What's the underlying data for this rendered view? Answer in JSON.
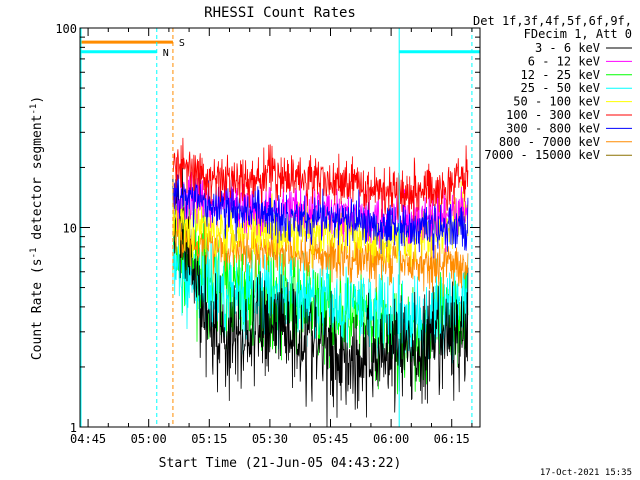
{
  "chart_data": {
    "type": "line",
    "title": "RHESSI Count Rates",
    "xlabel": "Start Time (21-Jun-05 04:43:22)",
    "ylabel": "Count Rate (s",
    "ylabel_sup": "-1",
    "ylabel_rest": " detector segment",
    "ylabel_end": ")",
    "yscale": "log",
    "ylim": [
      1,
      100
    ],
    "xlim": [
      "04:43",
      "06:22"
    ],
    "x_ticks": [
      "04:45",
      "05:00",
      "05:15",
      "05:30",
      "05:45",
      "06:00",
      "06:15"
    ],
    "y_ticks": [
      "1",
      "10",
      "100"
    ],
    "legend_header": [
      "Det 1f,3f,4f,5f,6f,9f,",
      "FDecim 1, Att 0"
    ],
    "legend_position": "right",
    "timestamp": "17-Oct-2021 15:35",
    "series": [
      {
        "name": "3 - 6 keV",
        "color": "#000000",
        "times": [
          "05:06",
          "05:08",
          "05:10",
          "05:13",
          "05:16",
          "05:20",
          "05:24",
          "05:28",
          "05:32",
          "05:36",
          "05:40",
          "05:44",
          "05:48",
          "05:52",
          "05:56",
          "06:00",
          "06:04",
          "06:08",
          "06:12",
          "06:16",
          "06:19"
        ],
        "values": [
          12,
          9,
          7,
          4.2,
          3.2,
          2.7,
          2.8,
          3.2,
          3.5,
          3.0,
          2.7,
          2.4,
          2.3,
          2.2,
          2.3,
          2.5,
          2.4,
          2.3,
          2.6,
          2.9,
          3.0
        ]
      },
      {
        "name": "6 - 12 keV",
        "color": "#ff00ff",
        "times": [
          "05:06",
          "05:10",
          "05:15",
          "05:20",
          "05:25",
          "05:30",
          "05:35",
          "05:40",
          "05:45",
          "05:50",
          "05:55",
          "06:00",
          "06:05",
          "06:10",
          "06:15",
          "06:19"
        ],
        "values": [
          14,
          14,
          13.5,
          13,
          12.5,
          12.5,
          12.5,
          12,
          12,
          11.5,
          11,
          11,
          11,
          11,
          11.5,
          12
        ]
      },
      {
        "name": "12 - 25 keV",
        "color": "#00ff00",
        "times": [
          "05:06",
          "05:10",
          "05:15",
          "05:20",
          "05:25",
          "05:30",
          "05:35",
          "05:40",
          "05:45",
          "05:50",
          "05:55",
          "06:00",
          "06:05",
          "06:10",
          "06:15",
          "06:19"
        ],
        "values": [
          7.5,
          6.5,
          5.5,
          5.0,
          4.6,
          4.4,
          4.2,
          4.0,
          3.8,
          3.5,
          3.2,
          2.9,
          2.8,
          3.0,
          3.5,
          4.2
        ]
      },
      {
        "name": "25 - 50 keV",
        "color": "#00ffff",
        "times": [
          "05:06",
          "05:10",
          "05:15",
          "05:20",
          "05:25",
          "05:30",
          "05:35",
          "05:40",
          "05:45",
          "05:50",
          "05:55",
          "06:00",
          "06:05",
          "06:10",
          "06:15",
          "06:19"
        ],
        "values": [
          6.3,
          5.5,
          5.0,
          4.8,
          4.6,
          4.5,
          4.5,
          4.4,
          4.2,
          4.0,
          3.8,
          3.5,
          3.4,
          3.5,
          3.9,
          4.4
        ]
      },
      {
        "name": "50 - 100 keV",
        "color": "#ffff00",
        "times": [
          "05:06",
          "05:10",
          "05:15",
          "05:20",
          "05:25",
          "05:30",
          "05:35",
          "05:40",
          "05:45",
          "05:50",
          "05:55",
          "06:00",
          "06:05",
          "06:10",
          "06:15",
          "06:19"
        ],
        "values": [
          11,
          10.5,
          10,
          10,
          10,
          10,
          9.8,
          9.6,
          9.4,
          9.2,
          9.0,
          9.0,
          9.2,
          9.6,
          10.5,
          12
        ]
      },
      {
        "name": "100 - 300 keV",
        "color": "#ff0000",
        "times": [
          "05:06",
          "05:10",
          "05:15",
          "05:20",
          "05:25",
          "05:30",
          "05:35",
          "05:40",
          "05:45",
          "05:50",
          "05:55",
          "06:00",
          "06:05",
          "06:10",
          "06:15",
          "06:19"
        ],
        "values": [
          22,
          19,
          17.5,
          17,
          17.5,
          18.5,
          18,
          17.5,
          17,
          16.5,
          16,
          15.5,
          15.5,
          15.5,
          16.5,
          18.5
        ]
      },
      {
        "name": "300 - 800 keV",
        "color": "#0000ff",
        "times": [
          "05:06",
          "05:10",
          "05:15",
          "05:20",
          "05:25",
          "05:30",
          "05:35",
          "05:40",
          "05:45",
          "05:50",
          "05:55",
          "06:00",
          "06:05",
          "06:10",
          "06:15",
          "06:19"
        ],
        "values": [
          15.5,
          14,
          13,
          12.5,
          12,
          11.8,
          11.5,
          11.2,
          11,
          10.8,
          10.5,
          10.3,
          10,
          10,
          9.8,
          9.8
        ]
      },
      {
        "name": "800 - 7000 keV",
        "color": "#ff8c00",
        "times": [
          "05:06",
          "05:10",
          "05:15",
          "05:20",
          "05:25",
          "05:30",
          "05:35",
          "05:40",
          "05:45",
          "05:50",
          "05:55",
          "06:00",
          "06:05",
          "06:10",
          "06:15",
          "06:19"
        ],
        "values": [
          9.5,
          8.8,
          8.3,
          8.0,
          7.8,
          7.6,
          7.5,
          7.3,
          7.2,
          7.0,
          6.9,
          6.8,
          6.7,
          6.6,
          6.5,
          6.5
        ]
      },
      {
        "name": "7000 - 15000 keV",
        "color": "#8b7000",
        "times": [],
        "values": []
      }
    ],
    "annotations": [
      {
        "text": "S",
        "color": "#ff8c00",
        "start": "04:43",
        "end": "05:06",
        "value": 85
      },
      {
        "text": "N",
        "color": "#00ffff",
        "start": "04:43",
        "end": "05:02",
        "value": 76
      },
      {
        "text": "",
        "color": "#00ffff",
        "start": "06:02",
        "end": "06:22",
        "value": 76
      }
    ],
    "vlines": [
      {
        "time": "05:02",
        "color": "#00ffff",
        "style": "dashed"
      },
      {
        "time": "05:06",
        "color": "#ff8c00",
        "style": "dashed"
      },
      {
        "time": "06:02",
        "color": "#00ffff",
        "style": "solid"
      },
      {
        "time": "06:20",
        "color": "#00ffff",
        "style": "dashed"
      }
    ]
  }
}
